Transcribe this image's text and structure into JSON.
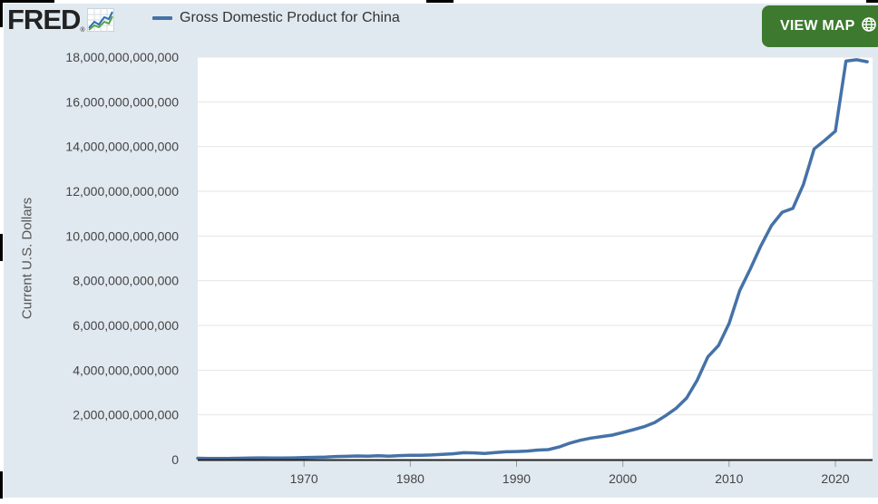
{
  "header": {
    "logo_text": "FRED",
    "logo_reg": "®",
    "legend_label": "Gross Domestic Product for China",
    "view_map_label": "VIEW MAP"
  },
  "icons": {
    "logo": "trend-chart-icon",
    "view_map": "globe-icon"
  },
  "colors": {
    "series": "#4572a7",
    "view_map_button": "#3d7a2f",
    "plot_background": "#ffffff",
    "frame_background": "#e1e9f0"
  },
  "chart_data": {
    "type": "line",
    "title": "",
    "xlabel": "",
    "ylabel": "Current U.S. Dollars",
    "grid": true,
    "legend_position": "top-left",
    "xlim": [
      1960,
      2023.5
    ],
    "ylim": [
      0,
      18000000000000
    ],
    "x_ticks": [
      1970,
      1980,
      1990,
      2000,
      2010,
      2020
    ],
    "y_ticks": [
      0,
      2000000000000,
      4000000000000,
      6000000000000,
      8000000000000,
      10000000000000,
      12000000000000,
      14000000000000,
      16000000000000,
      18000000000000
    ],
    "y_tick_labels": [
      "0",
      "2,000,000,000,000",
      "4,000,000,000,000",
      "6,000,000,000,000",
      "8,000,000,000,000",
      "10,000,000,000,000",
      "12,000,000,000,000",
      "14,000,000,000,000",
      "16,000,000,000,000",
      "18,000,000,000,000"
    ],
    "series": [
      {
        "name": "Gross Domestic Product for China",
        "x": [
          1960,
          1961,
          1962,
          1963,
          1964,
          1965,
          1966,
          1967,
          1968,
          1969,
          1970,
          1971,
          1972,
          1973,
          1974,
          1975,
          1976,
          1977,
          1978,
          1979,
          1980,
          1981,
          1982,
          1983,
          1984,
          1985,
          1986,
          1987,
          1988,
          1989,
          1990,
          1991,
          1992,
          1993,
          1994,
          1995,
          1996,
          1997,
          1998,
          1999,
          2000,
          2001,
          2002,
          2003,
          2004,
          2005,
          2006,
          2007,
          2008,
          2009,
          2010,
          2011,
          2012,
          2013,
          2014,
          2015,
          2016,
          2017,
          2018,
          2019,
          2020,
          2021,
          2022,
          2023
        ],
        "values": [
          60000000000,
          50000000000,
          47000000000,
          51000000000,
          59000000000,
          70000000000,
          76000000000,
          72000000000,
          70000000000,
          79000000000,
          92000000000,
          100000000000,
          114000000000,
          139000000000,
          144000000000,
          163000000000,
          154000000000,
          175000000000,
          150000000000,
          178000000000,
          191000000000,
          196000000000,
          205000000000,
          231000000000,
          260000000000,
          310000000000,
          300000000000,
          273000000000,
          312000000000,
          348000000000,
          361000000000,
          383000000000,
          427000000000,
          445000000000,
          565000000000,
          734000000000,
          863000000000,
          962000000000,
          1029000000000,
          1094000000000,
          1211000000000,
          1339000000000,
          1471000000000,
          1660000000000,
          1955000000000,
          2286000000000,
          2752000000000,
          3550000000000,
          4594000000000,
          5102000000000,
          6087000000000,
          7552000000000,
          8532000000000,
          9570000000000,
          10476000000000,
          11062000000000,
          11233000000000,
          12310000000000,
          13895000000000,
          14280000000000,
          14688000000000,
          17820000000000,
          17882000000000,
          17795000000000
        ]
      }
    ]
  }
}
